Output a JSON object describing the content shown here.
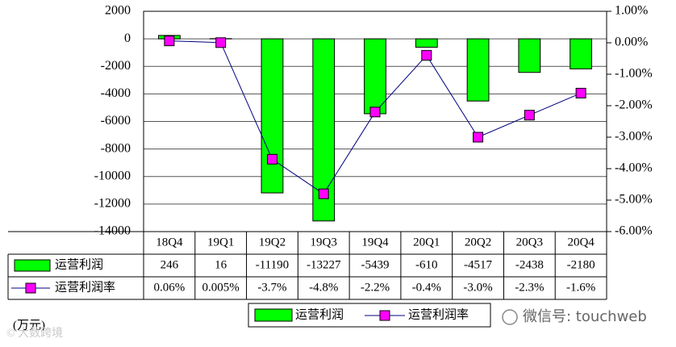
{
  "chart_data": {
    "type": "bar_line_table",
    "categories": [
      "18Q4",
      "19Q1",
      "19Q2",
      "19Q3",
      "19Q4",
      "20Q1",
      "20Q2",
      "20Q3",
      "20Q4"
    ],
    "series": [
      {
        "name": "运营利润",
        "color": "#00ff00",
        "values": [
          246,
          16,
          -11190,
          -13227,
          -5439,
          -610,
          -4517,
          -2438,
          -2180
        ]
      },
      {
        "name": "运营利润率",
        "color": "#ff00ff",
        "axis": "y2",
        "values": [
          0.06,
          0.005,
          -3.7,
          -4.8,
          -2.2,
          -0.4,
          -3.0,
          -2.3,
          -1.6
        ],
        "value_labels": [
          "0.06%",
          "0.005%",
          "-3.7%",
          "-4.8%",
          "-2.2%",
          "-0.4%",
          "-3.0%",
          "-2.3%",
          "-1.6%"
        ]
      }
    ],
    "ylim": [
      -14000,
      2000
    ],
    "yticks": [
      2000,
      0,
      -2000,
      -4000,
      -6000,
      -8000,
      -10000,
      -12000,
      -14000
    ],
    "y2lim": [
      -6,
      1
    ],
    "y2ticks": [
      {
        "value": 1,
        "label": "1.00%"
      },
      {
        "value": 0,
        "label": "0.00%"
      },
      {
        "value": -1,
        "label": "-1.00%"
      },
      {
        "value": -2,
        "label": "-2.00%"
      },
      {
        "value": -3,
        "label": "-3.00%"
      },
      {
        "value": -4,
        "label": "-4.00%"
      },
      {
        "value": -5,
        "label": "-5.00%"
      },
      {
        "value": -6,
        "label": "-6.00%"
      }
    ],
    "grid": true,
    "unit_label": "(万元)",
    "watermark": "微信号: touchweb",
    "copyright": "© 大数跨境"
  }
}
